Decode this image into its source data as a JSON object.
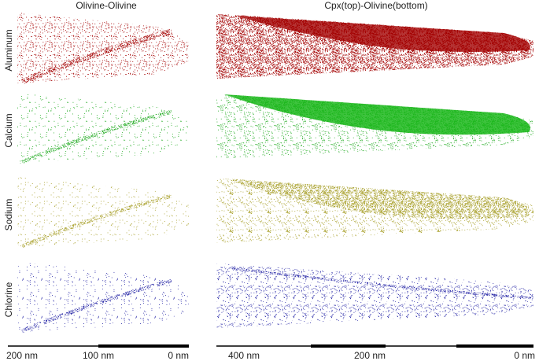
{
  "titles": {
    "left": "Olivine-Olivine",
    "right": "Cpx(top)-Olivine(bottom)"
  },
  "rows": [
    {
      "label": "Aluminum"
    },
    {
      "label": "Calcium"
    },
    {
      "label": "Sodium"
    },
    {
      "label": "Chlorine"
    }
  ],
  "scale_left": [
    "200 nm",
    "100 nm",
    "0 nm"
  ],
  "scale_right": [
    "400 nm",
    "200 nm",
    "0 nm"
  ]
}
